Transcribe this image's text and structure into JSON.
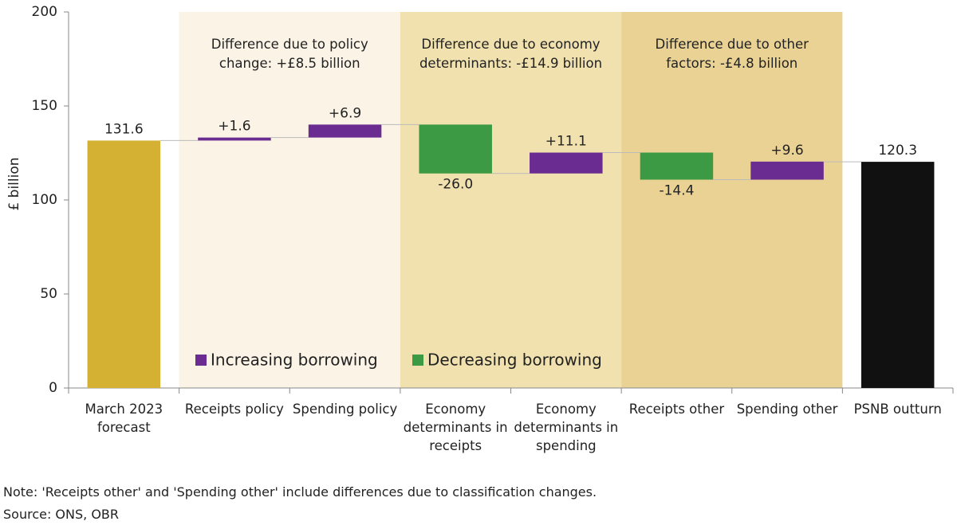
{
  "chart_data": {
    "type": "waterfall",
    "ylabel": "£ billion",
    "categories": [
      "March 2023 forecast",
      "Receipts policy",
      "Spending policy",
      "Economy determinants in receipts",
      "Economy determinants in spending",
      "Receipts other",
      "Spending other",
      "PSNB outturn"
    ],
    "values": [
      131.6,
      1.6,
      6.9,
      -26.0,
      11.1,
      -14.4,
      9.6,
      120.3
    ],
    "value_labels": [
      "131.6",
      "+1.6",
      "+6.9",
      "-26.0",
      "+11.1",
      "-14.4",
      "+9.6",
      "120.3"
    ],
    "measure": [
      "total",
      "relative",
      "relative",
      "relative",
      "relative",
      "relative",
      "relative",
      "total"
    ],
    "colors": [
      "#d4b133",
      "#6b2c91",
      "#6b2c91",
      "#3b9a43",
      "#6b2c91",
      "#3b9a43",
      "#6b2c91",
      "#111111"
    ],
    "ylim": [
      0,
      200
    ],
    "yticks": [
      0,
      50,
      100,
      150,
      200
    ],
    "bands": [
      {
        "label": "Difference due to policy change: +£8.5 billion",
        "start": 1,
        "end": 2,
        "color": "#faf3e6"
      },
      {
        "label": "Difference due to economy determinants: -£14.9 billion",
        "start": 3,
        "end": 4,
        "color": "#f0e1af"
      },
      {
        "label": "Difference due to other factors: -£4.8 billion",
        "start": 5,
        "end": 6,
        "color": "#e9d294"
      }
    ],
    "legend": [
      {
        "name": "Increasing borrowing",
        "color": "#6b2c91"
      },
      {
        "name": "Decreasing borrowing",
        "color": "#3b9a43"
      }
    ],
    "note": "Note: 'Receipts other' and 'Spending other' include differences due to classification changes.",
    "source": "Source: ONS, OBR"
  }
}
